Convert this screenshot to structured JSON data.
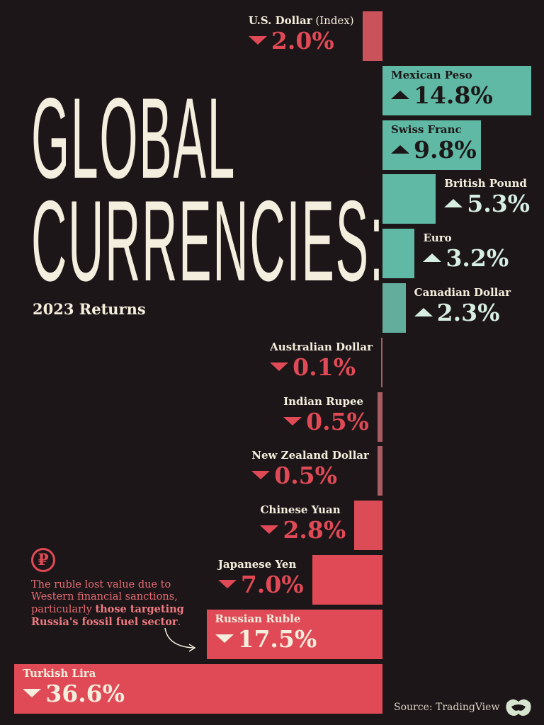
{
  "title_line1": "GLOBAL",
  "title_line2": "CURRENCIES:",
  "subtitle": "2023 Returns",
  "chart_data": {
    "type": "bar",
    "orientation": "horizontal",
    "unit": "%",
    "categories": [
      "U.S. Dollar (Index)",
      "Mexican Peso",
      "Swiss Franc",
      "British Pound",
      "Euro",
      "Canadian Dollar",
      "Australian Dollar",
      "Indian Rupee",
      "New Zealand Dollar",
      "Chinese Yuan",
      "Japanese Yen",
      "Russian Ruble",
      "Turkish Lira"
    ],
    "values": [
      -2.0,
      14.8,
      9.8,
      5.3,
      3.2,
      2.3,
      -0.1,
      -0.5,
      -0.5,
      -2.8,
      -7.0,
      -17.5,
      -36.6
    ],
    "value_labels": [
      "2.0%",
      "14.8%",
      "9.8%",
      "5.3%",
      "3.2%",
      "2.3%",
      "0.1%",
      "0.5%",
      "0.5%",
      "2.8%",
      "7.0%",
      "17.5%",
      "36.6%"
    ],
    "colors": {
      "positive": "#5fb9a4",
      "negative": "#e04a56",
      "background": "#1d1618"
    }
  },
  "annotation": {
    "icon": "ruble-sign-icon",
    "symbol": "₽",
    "text_plain": "The ruble lost value due to Western financial sanctions, particularly ",
    "text_bold": "those targeting Russia's fossil fuel sector",
    "text_end": "."
  },
  "source": "Source: TradingView"
}
